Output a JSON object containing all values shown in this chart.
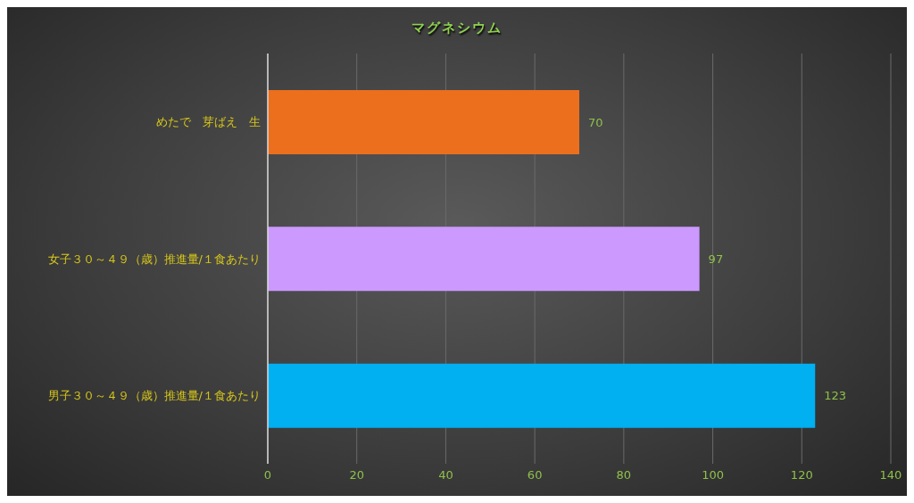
{
  "chart_data": {
    "type": "bar",
    "orientation": "horizontal",
    "title": "マグネシウム",
    "categories": [
      "めたで　芽ばえ　生",
      "女子３０～４９（歳）推進量/１食あたり",
      "男子３０～４９（歳）推進量/１食あたり"
    ],
    "values": [
      70,
      97,
      123
    ],
    "colors": [
      "#ec6f1e",
      "#cc99ff",
      "#00b0f0"
    ],
    "xlim": [
      0,
      140
    ],
    "xticks": [
      0,
      20,
      40,
      60,
      80,
      100,
      120,
      140
    ],
    "grid": "x",
    "data_labels": true
  }
}
